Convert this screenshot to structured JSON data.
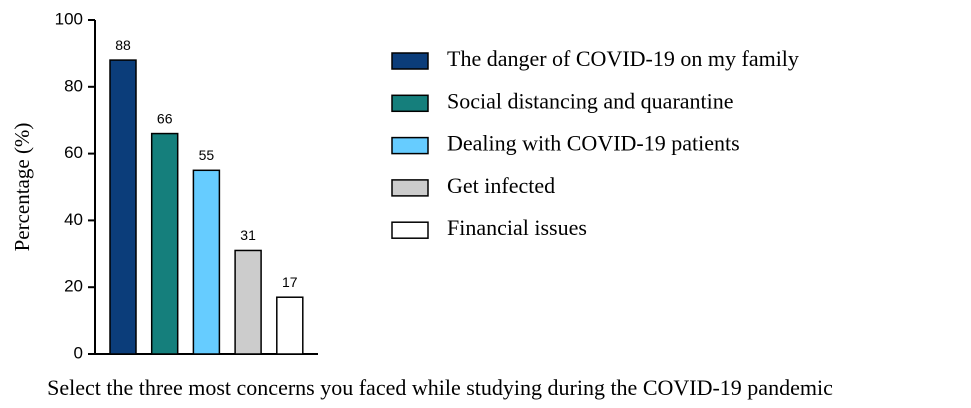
{
  "chart_data": {
    "type": "bar",
    "y_label": "Percentage (%)",
    "x_label": "Select the three most concerns you faced while studying during the COVID-19 pandemic",
    "categories": [
      "The danger of COVID-19 on my family",
      "Social distancing and quarantine",
      "Dealing with COVID-19 patients",
      "Get infected",
      "Financial issues"
    ],
    "values": [
      88,
      66,
      55,
      31,
      17
    ],
    "colors": [
      "#0b3d7a",
      "#157f7c",
      "#66ccff",
      "#cccccc",
      "#ffffff"
    ],
    "ylim": [
      0,
      100
    ],
    "yticks": [
      0,
      20,
      40,
      60,
      80,
      100
    ],
    "grid": false,
    "legend": "right"
  }
}
